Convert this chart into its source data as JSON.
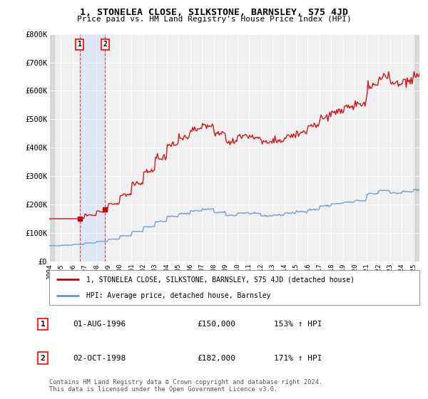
{
  "title": "1, STONELEA CLOSE, SILKSTONE, BARNSLEY, S75 4JD",
  "subtitle": "Price paid vs. HM Land Registry's House Price Index (HPI)",
  "background_color": "#ffffff",
  "plot_bg_color": "#f0f0f0",
  "hpi_line_color": "#6699cc",
  "price_line_color": "#cc0000",
  "ylim": [
    0,
    800000
  ],
  "yticks": [
    0,
    100000,
    200000,
    300000,
    400000,
    500000,
    600000,
    700000,
    800000
  ],
  "ytick_labels": [
    "£0",
    "£100K",
    "£200K",
    "£300K",
    "£400K",
    "£500K",
    "£600K",
    "£700K",
    "£800K"
  ],
  "sale1_year": 1996.583,
  "sale1_price": 150000,
  "sale1_label": "1",
  "sale1_date": "01-AUG-1996",
  "sale1_hpi_pct": "153%",
  "sale2_year": 1998.75,
  "sale2_price": 182000,
  "sale2_label": "2",
  "sale2_date": "02-OCT-1998",
  "sale2_hpi_pct": "171%",
  "legend_line1": "1, STONELEA CLOSE, SILKSTONE, BARNSLEY, S75 4JD (detached house)",
  "legend_line2": "HPI: Average price, detached house, Barnsley",
  "footnote": "Contains HM Land Registry data © Crown copyright and database right 2024.\nThis data is licensed under the Open Government Licence v3.0.",
  "xlim_start": 1994.0,
  "xlim_end": 2025.5,
  "hatch_end": 2025.08,
  "xtick_years": [
    1994,
    1995,
    1996,
    1997,
    1998,
    1999,
    2000,
    2001,
    2002,
    2003,
    2004,
    2005,
    2006,
    2007,
    2008,
    2009,
    2010,
    2011,
    2012,
    2013,
    2014,
    2015,
    2016,
    2017,
    2018,
    2019,
    2020,
    2021,
    2022,
    2023,
    2024,
    2025
  ]
}
